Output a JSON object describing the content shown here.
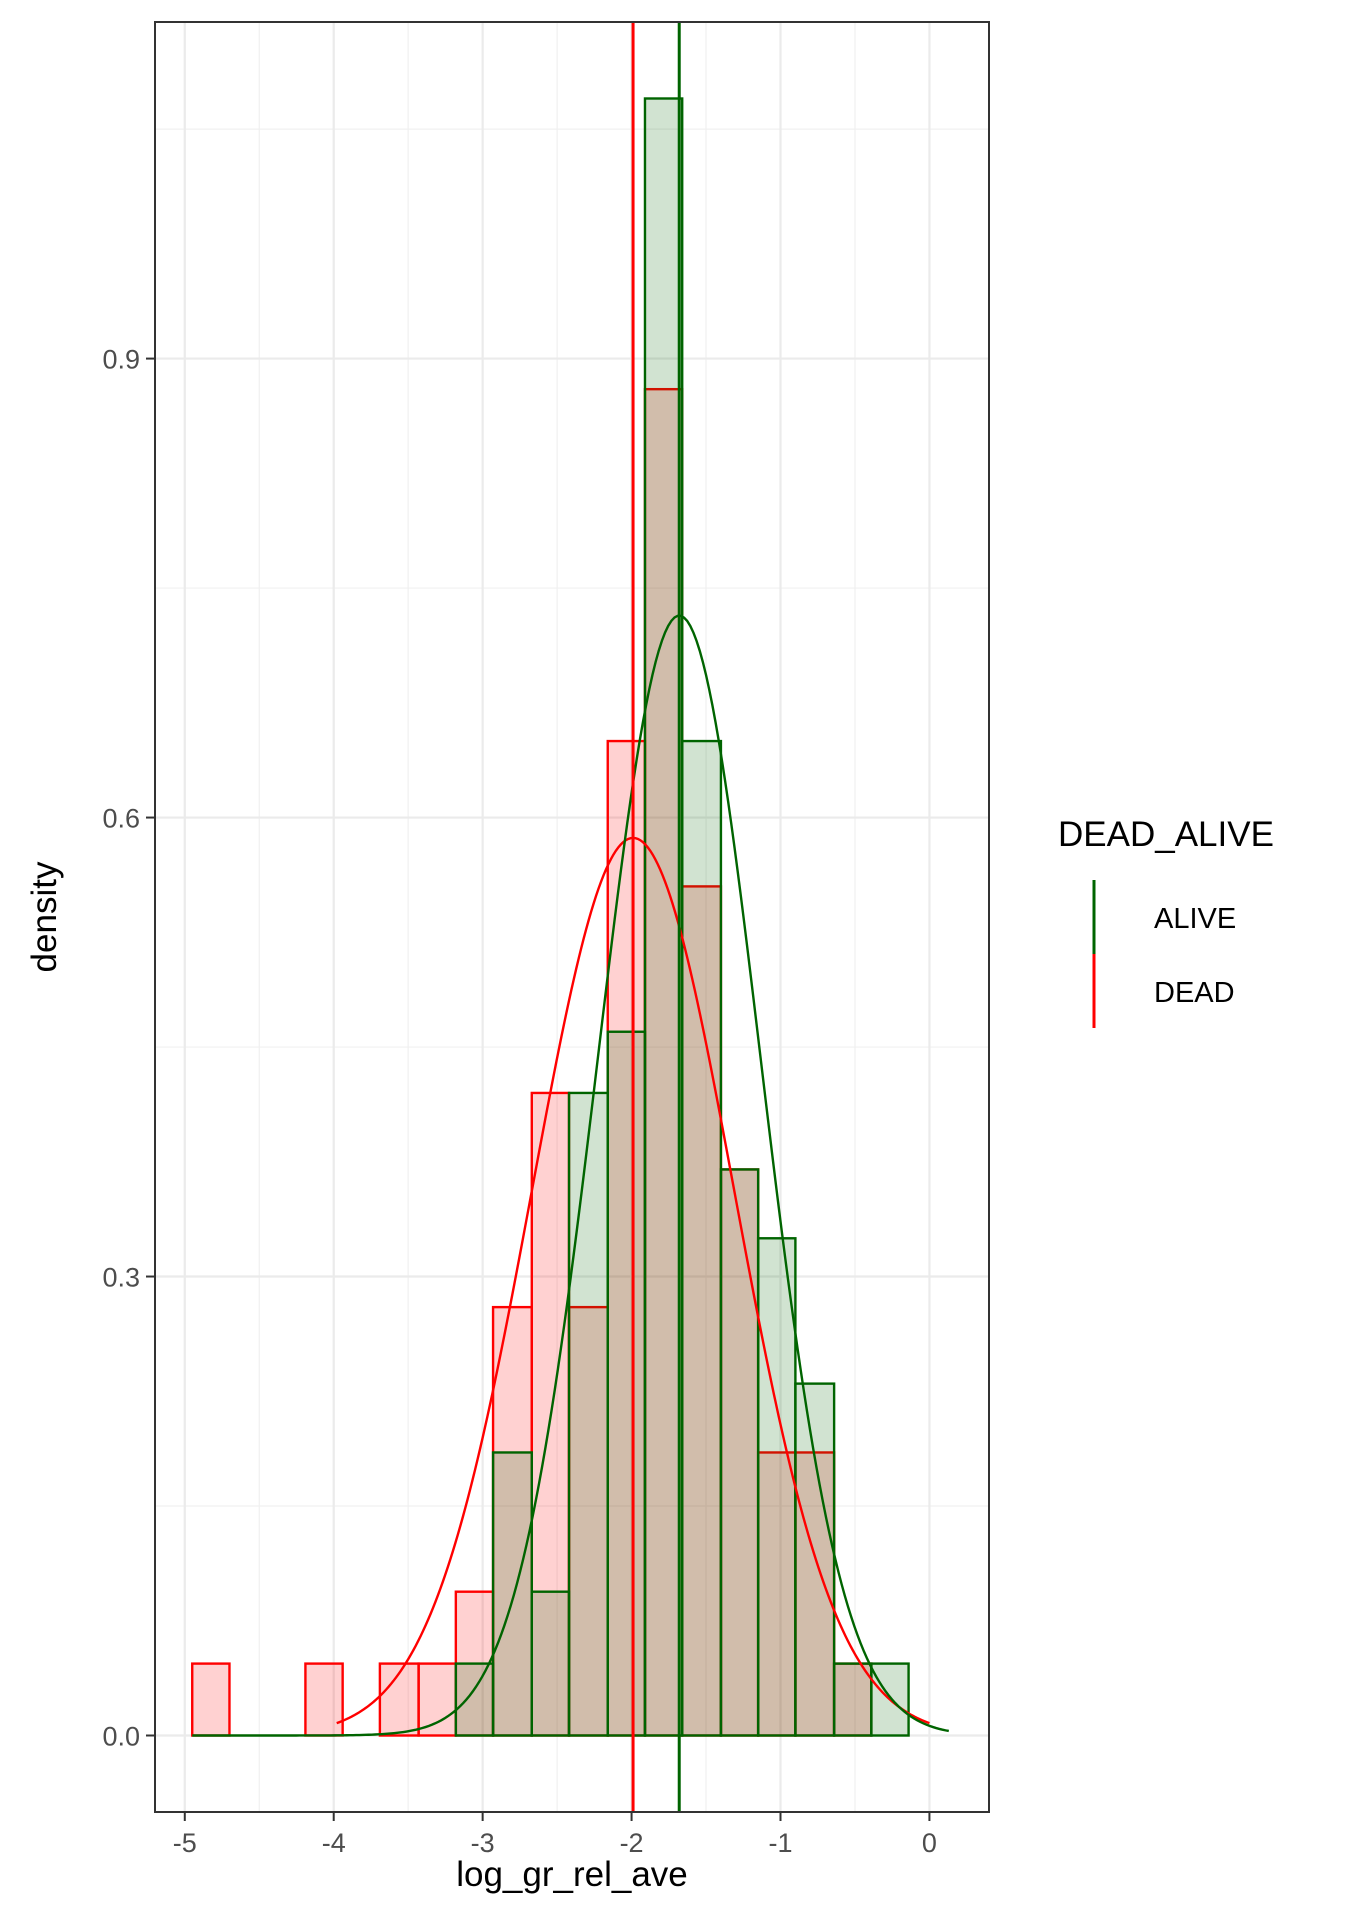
{
  "chart_data": {
    "type": "histogram",
    "xlabel": "log_gr_rel_ave",
    "ylabel": "density",
    "xlim": [
      -5.2,
      0.4
    ],
    "ylim": [
      -0.05,
      1.12
    ],
    "x_ticks": [
      -5,
      -4,
      -3,
      -2,
      -1,
      0
    ],
    "x_tick_labels": [
      "-5",
      "-4",
      "-3",
      "-2",
      "-1",
      "0"
    ],
    "y_ticks": [
      0.0,
      0.3,
      0.6,
      0.9
    ],
    "y_tick_labels": [
      "0.0",
      "0.3",
      "0.6",
      "0.9"
    ],
    "grid": true,
    "legend": {
      "title": "DEAD_ALIVE",
      "position": "right",
      "entries": [
        {
          "label": "ALIVE",
          "color": "#006400"
        },
        {
          "label": "DEAD",
          "color": "#ff0000"
        }
      ]
    },
    "series": [
      {
        "name": "DEAD",
        "color": "#ff0000",
        "fill": "#ff0000",
        "fill_opacity": 0.18,
        "mean": -1.99,
        "bins": [
          {
            "x0": -4.95,
            "x1": -4.7,
            "density": 0.047
          },
          {
            "x0": -4.7,
            "x1": -4.45,
            "density": 0.0
          },
          {
            "x0": -4.45,
            "x1": -4.19,
            "density": 0.0
          },
          {
            "x0": -4.19,
            "x1": -3.94,
            "density": 0.047
          },
          {
            "x0": -3.94,
            "x1": -3.69,
            "density": 0.0
          },
          {
            "x0": -3.69,
            "x1": -3.43,
            "density": 0.047
          },
          {
            "x0": -3.43,
            "x1": -3.18,
            "density": 0.047
          },
          {
            "x0": -3.18,
            "x1": -2.93,
            "density": 0.094
          },
          {
            "x0": -2.93,
            "x1": -2.67,
            "density": 0.28
          },
          {
            "x0": -2.67,
            "x1": -2.42,
            "density": 0.42
          },
          {
            "x0": -2.42,
            "x1": -2.16,
            "density": 0.28
          },
          {
            "x0": -2.16,
            "x1": -1.91,
            "density": 0.65
          },
          {
            "x0": -1.91,
            "x1": -1.66,
            "density": 0.88
          },
          {
            "x0": -1.66,
            "x1": -1.4,
            "density": 0.555
          },
          {
            "x0": -1.4,
            "x1": -1.15,
            "density": 0.37
          },
          {
            "x0": -1.15,
            "x1": -0.9,
            "density": 0.185
          },
          {
            "x0": -0.9,
            "x1": -0.64,
            "density": 0.185
          },
          {
            "x0": -0.64,
            "x1": -0.39,
            "density": 0.047
          }
        ],
        "curve": {
          "mu": -1.99,
          "sigma": 0.68,
          "x_start": -3.98,
          "x_end": 0.0
        }
      },
      {
        "name": "ALIVE",
        "color": "#006400",
        "fill": "#006400",
        "fill_opacity": 0.18,
        "mean": -1.68,
        "bins": [
          {
            "x0": -3.18,
            "x1": -2.93,
            "density": 0.047
          },
          {
            "x0": -2.93,
            "x1": -2.67,
            "density": 0.185
          },
          {
            "x0": -2.67,
            "x1": -2.42,
            "density": 0.094
          },
          {
            "x0": -2.42,
            "x1": -2.16,
            "density": 0.42
          },
          {
            "x0": -2.16,
            "x1": -1.91,
            "density": 0.46
          },
          {
            "x0": -1.91,
            "x1": -1.66,
            "density": 1.07
          },
          {
            "x0": -1.66,
            "x1": -1.4,
            "density": 0.65
          },
          {
            "x0": -1.4,
            "x1": -1.15,
            "density": 0.37
          },
          {
            "x0": -1.15,
            "x1": -0.9,
            "density": 0.325
          },
          {
            "x0": -0.9,
            "x1": -0.64,
            "density": 0.23
          },
          {
            "x0": -0.64,
            "x1": -0.39,
            "density": 0.047
          },
          {
            "x0": -0.39,
            "x1": -0.14,
            "density": 0.047
          }
        ],
        "curve": {
          "mu": -1.68,
          "sigma": 0.545,
          "x_start": -4.95,
          "x_end": 0.13
        }
      }
    ]
  }
}
